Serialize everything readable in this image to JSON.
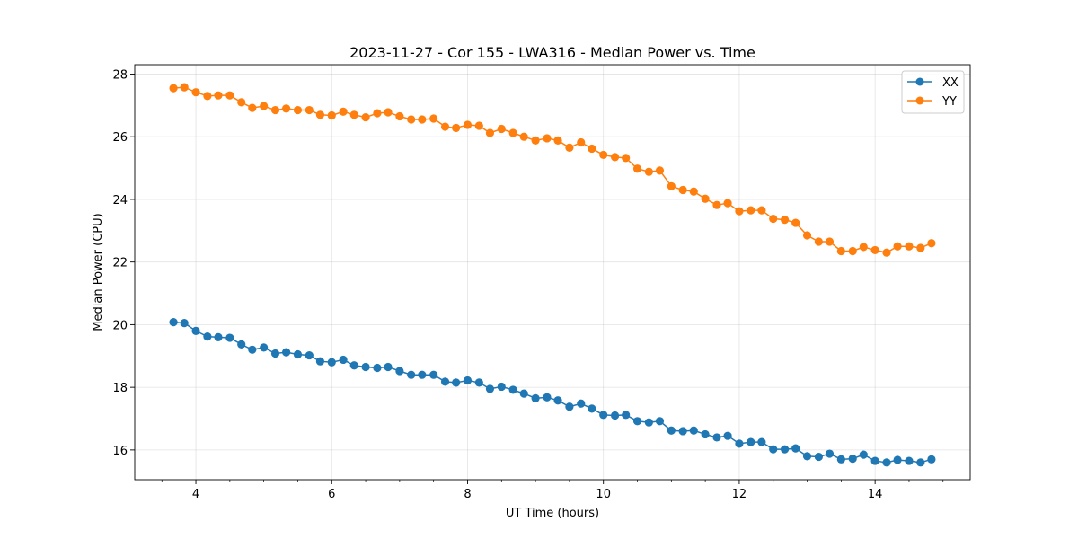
{
  "chart_data": {
    "type": "line",
    "title": "2023-11-27 - Cor 155 - LWA316 - Median Power vs. Time",
    "xlabel": "UT Time (hours)",
    "ylabel": "Median Power (CPU)",
    "xlim": [
      3.1,
      15.4
    ],
    "ylim": [
      15.05,
      28.3
    ],
    "xticks": [
      4,
      6,
      8,
      10,
      12,
      14
    ],
    "yticks": [
      16,
      18,
      20,
      22,
      24,
      26,
      28
    ],
    "grid": true,
    "legend_position": "top-right",
    "x": [
      3.67,
      3.83,
      4.0,
      4.17,
      4.33,
      4.5,
      4.67,
      4.83,
      5.0,
      5.17,
      5.33,
      5.5,
      5.67,
      5.83,
      6.0,
      6.17,
      6.33,
      6.5,
      6.67,
      6.83,
      7.0,
      7.17,
      7.33,
      7.5,
      7.67,
      7.83,
      8.0,
      8.17,
      8.33,
      8.5,
      8.67,
      8.83,
      9.0,
      9.17,
      9.33,
      9.5,
      9.67,
      9.83,
      10.0,
      10.17,
      10.33,
      10.5,
      10.67,
      10.83,
      11.0,
      11.17,
      11.33,
      11.5,
      11.67,
      11.83,
      12.0,
      12.17,
      12.33,
      12.5,
      12.67,
      12.83,
      13.0,
      13.17,
      13.33,
      13.5,
      13.67,
      13.83,
      14.0,
      14.17,
      14.33,
      14.5,
      14.67,
      14.83
    ],
    "series": [
      {
        "name": "XX",
        "color": "#1f77b4",
        "values": [
          20.08,
          20.05,
          19.8,
          19.62,
          19.6,
          19.58,
          19.37,
          19.2,
          19.27,
          19.08,
          19.12,
          19.05,
          19.02,
          18.83,
          18.8,
          18.88,
          18.7,
          18.65,
          18.62,
          18.65,
          18.52,
          18.4,
          18.4,
          18.4,
          18.18,
          18.15,
          18.22,
          18.15,
          17.95,
          18.02,
          17.92,
          17.8,
          17.65,
          17.68,
          17.58,
          17.38,
          17.48,
          17.32,
          17.12,
          17.1,
          17.12,
          16.92,
          16.88,
          16.92,
          16.62,
          16.6,
          16.62,
          16.5,
          16.4,
          16.45,
          16.2,
          16.25,
          16.25,
          16.02,
          16.02,
          16.05,
          15.8,
          15.78,
          15.88,
          15.7,
          15.72,
          15.85,
          15.65,
          15.6,
          15.68,
          15.65,
          15.6,
          15.7
        ]
      },
      {
        "name": "YY",
        "color": "#ff7f0e",
        "values": [
          27.55,
          27.58,
          27.42,
          27.3,
          27.32,
          27.32,
          27.1,
          26.92,
          26.98,
          26.85,
          26.9,
          26.85,
          26.85,
          26.7,
          26.68,
          26.8,
          26.7,
          26.62,
          26.75,
          26.78,
          26.65,
          26.55,
          26.55,
          26.58,
          26.32,
          26.28,
          26.38,
          26.35,
          26.12,
          26.25,
          26.12,
          26.0,
          25.88,
          25.95,
          25.88,
          25.65,
          25.82,
          25.62,
          25.42,
          25.35,
          25.32,
          24.98,
          24.88,
          24.92,
          24.42,
          24.3,
          24.25,
          24.02,
          23.82,
          23.88,
          23.62,
          23.65,
          23.65,
          23.38,
          23.35,
          23.25,
          22.85,
          22.65,
          22.65,
          22.35,
          22.35,
          22.48,
          22.38,
          22.3,
          22.5,
          22.5,
          22.45,
          22.6
        ]
      }
    ]
  }
}
